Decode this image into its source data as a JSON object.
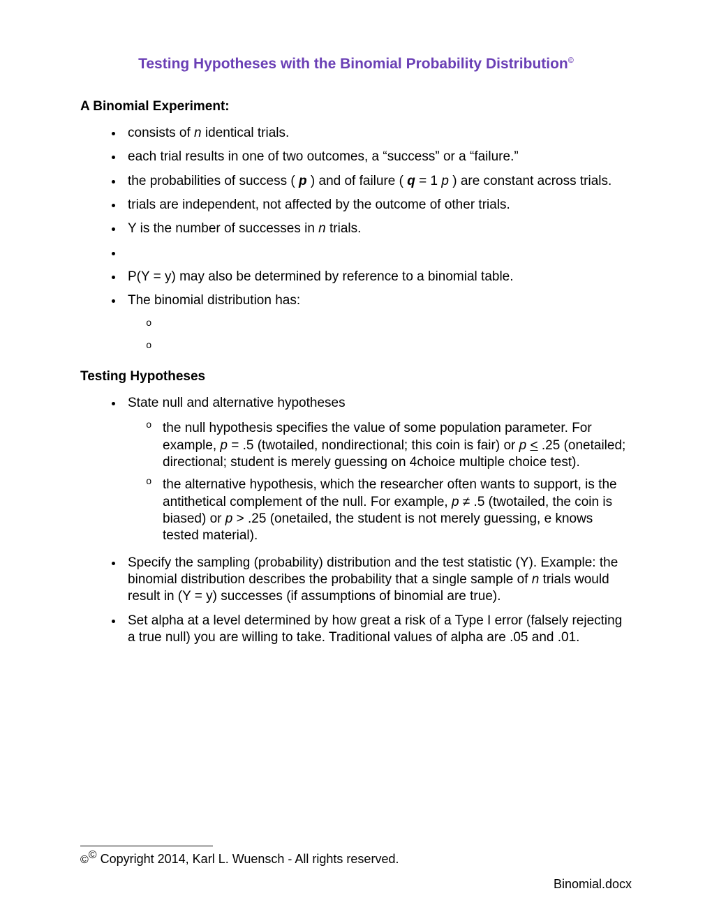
{
  "title": "Testing Hypotheses with the Binomial Probability Distribution",
  "title_color": "#6a3fb5",
  "section1_heading": "A Binomial Experiment:",
  "section2_heading": "Testing Hypotheses",
  "s1": {
    "b1a": "consists of ",
    "b1b": "n",
    "b1c": " identical trials.",
    "b2": "each trial results in one of two outcomes, a “success” or a “failure.”",
    "b3a": "the probabilities of success ( ",
    "b3b": "p",
    "b3c": " ) and of failure ( ",
    "b3d": "q",
    "b3e": " = 1  ",
    "b3f": "p",
    "b3g": " ) are constant across trials.",
    "b4": "trials are independent, not affected by the outcome of other trials.",
    "b5a": "Y is the number of successes in ",
    "b5b": "n",
    "b5c": " trials.",
    "b7": "P(Y = y) may also be determined by reference to a binomial table.",
    "b8": "The binomial distribution has:"
  },
  "s2": {
    "b1": "State null and alternative hypotheses",
    "b1s1a": "the null hypothesis specifies the value of some population parameter.  For example, ",
    "b1s1b": "p",
    "b1s1c": " = .5 (two­tailed, nondirectional; this coin is fair) or ",
    "b1s1d": "p",
    "b1s1e": " ",
    "b1s1f": "<",
    "b1s1g": " .25 (one­tailed; directional; student is merely guessing on 4­choice multiple choice test).",
    "b1s2a": "the alternative hypothesis, which the researcher often wants to support, is the antithetical complement of the null.  For example, ",
    "b1s2b": "p",
    "b1s2c": " ≠ .5 (two­tailed, the coin is biased) or ",
    "b1s2d": "p",
    "b1s2e": " > .25 (one­tailed, the student is not merely guessing, e knows tested material).",
    "b2a": "Specify the sampling (probability) distribution and the test statistic (Y).  Example: the binomial distribution describes the probability that a single sample of ",
    "b2b": "n",
    "b2c": " trials would result in (Y = y) successes (if assumptions of binomial are true).",
    "b3": "Set alpha at a level determined by how great a risk of a Type I error (falsely rejecting a true null) you are willing to take.  Traditional values of alpha are .05 and .01."
  },
  "footnote": " Copyright 2014, Karl L. Wuensch - All rights reserved.",
  "filename": "Binomial.docx"
}
